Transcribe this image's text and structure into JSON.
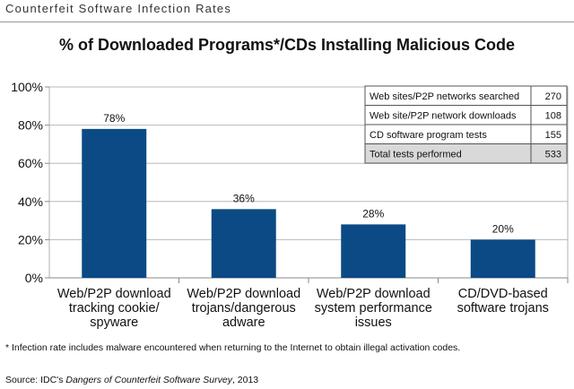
{
  "header": {
    "title": "Counterfeit Software Infection Rates"
  },
  "chart_data": {
    "type": "bar",
    "title": "% of Downloaded Programs*/CDs Installing Malicious Code",
    "xlabel": "",
    "ylabel": "",
    "ylim": [
      0,
      100
    ],
    "yticks": [
      "0%",
      "20%",
      "40%",
      "60%",
      "80%",
      "100%"
    ],
    "yticks_values": [
      0,
      20,
      40,
      60,
      80,
      100
    ],
    "categories": [
      "Web/P2P download tracking cookie/ spyware",
      "Web/P2P download trojans/dangerous adware",
      "Web/P2P download system performance issues",
      "CD/DVD-based software trojans"
    ],
    "category_lines": [
      [
        "Web/P2P download",
        "tracking cookie/",
        "spyware"
      ],
      [
        "Web/P2P download",
        "trojans/dangerous",
        "adware"
      ],
      [
        "Web/P2P download",
        "system performance",
        "issues"
      ],
      [
        "CD/DVD-based",
        "software trojans"
      ]
    ],
    "values": [
      78,
      36,
      28,
      20
    ],
    "data_labels": [
      "78%",
      "36%",
      "28%",
      "20%"
    ],
    "bar_color": "#0b4a84",
    "gridlines": true,
    "inset_table": {
      "rows": [
        {
          "label": "Web sites/P2P networks searched",
          "value": "270"
        },
        {
          "label": "Web site/P2P network downloads",
          "value": "108"
        },
        {
          "label": "CD software program tests",
          "value": "155"
        },
        {
          "label": "Total tests performed",
          "value": "533"
        }
      ]
    }
  },
  "footnote": "* Infection rate includes malware encountered when returning to the Internet to obtain illegal activation codes.",
  "source": {
    "prefix": "Source: IDC's ",
    "title": "Dangers of Counterfeit Software Survey",
    "suffix": ", 2013"
  }
}
